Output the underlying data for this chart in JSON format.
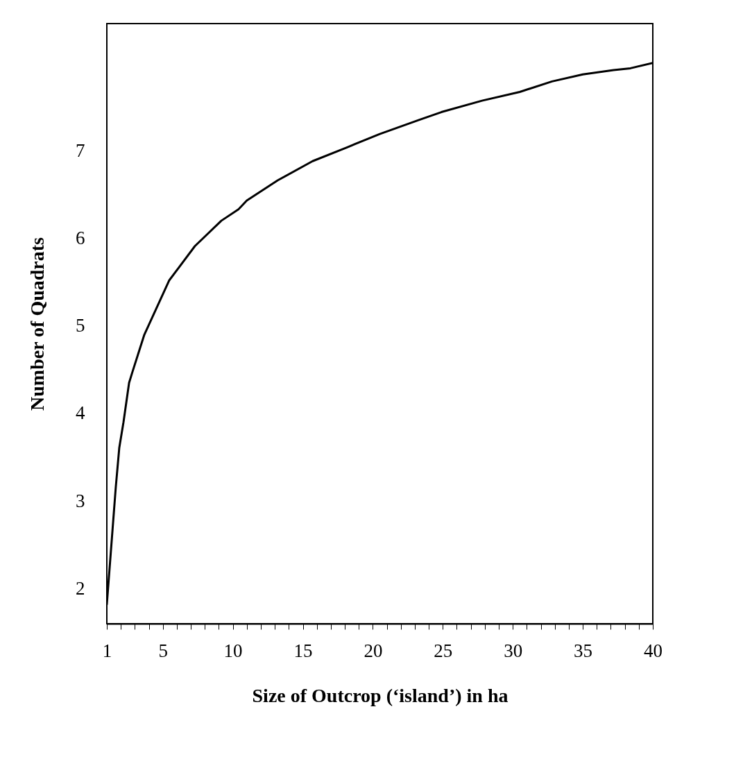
{
  "chart_data": {
    "type": "line",
    "xlabel": "Size of Outcrop (‘island’) in ha",
    "ylabel": "Number of Quadrats",
    "x": [
      1,
      1.64,
      1.89,
      2.19,
      2.59,
      2.84,
      3.68,
      5.46,
      7.29,
      9.18,
      10.4,
      11.0,
      13.2,
      15.7,
      18.2,
      20.5,
      23.3,
      24.9,
      27.8,
      30.5,
      32.8,
      35.0,
      37.2,
      38.4,
      40
    ],
    "series": [
      {
        "color": "#000000",
        "values": [
          1.82,
          3.16,
          3.61,
          3.9,
          4.35,
          4.48,
          4.9,
          5.52,
          5.91,
          6.2,
          6.33,
          6.43,
          6.66,
          6.88,
          7.04,
          7.19,
          7.35,
          7.44,
          7.57,
          7.67,
          7.79,
          7.87,
          7.92,
          7.94,
          8.0
        ]
      }
    ],
    "xlim": [
      1,
      40
    ],
    "ylim": [
      1.6,
      8.45
    ],
    "xticks": [
      1,
      {
        "value": 2,
        "label": null
      },
      {
        "value": 3,
        "label": null
      },
      {
        "value": 4,
        "label": null
      },
      5,
      {
        "value": 6,
        "label": null
      },
      {
        "value": 7,
        "label": null
      },
      {
        "value": 8,
        "label": null
      },
      {
        "value": 9,
        "label": null
      },
      10,
      {
        "value": 11,
        "label": null
      },
      {
        "value": 12,
        "label": null
      },
      {
        "value": 13,
        "label": null
      },
      {
        "value": 14,
        "label": null
      },
      15,
      {
        "value": 16,
        "label": null
      },
      {
        "value": 17,
        "label": null
      },
      {
        "value": 18,
        "label": null
      },
      {
        "value": 19,
        "label": null
      },
      20,
      {
        "value": 21,
        "label": null
      },
      {
        "value": 22,
        "label": null
      },
      {
        "value": 23,
        "label": null
      },
      {
        "value": 24,
        "label": null
      },
      25,
      {
        "value": 26,
        "label": null
      },
      {
        "value": 27,
        "label": null
      },
      {
        "value": 28,
        "label": null
      },
      {
        "value": 29,
        "label": null
      },
      30,
      {
        "value": 31,
        "label": null
      },
      {
        "value": 32,
        "label": null
      },
      {
        "value": 33,
        "label": null
      },
      {
        "value": 34,
        "label": null
      },
      35,
      {
        "value": 36,
        "label": null
      },
      {
        "value": 37,
        "label": null
      },
      {
        "value": 38,
        "label": null
      },
      {
        "value": 39,
        "label": null
      },
      40
    ],
    "yticks": [
      2,
      3,
      4,
      5,
      6,
      7
    ],
    "grid": false,
    "marker": "none",
    "line_style": "solid"
  }
}
